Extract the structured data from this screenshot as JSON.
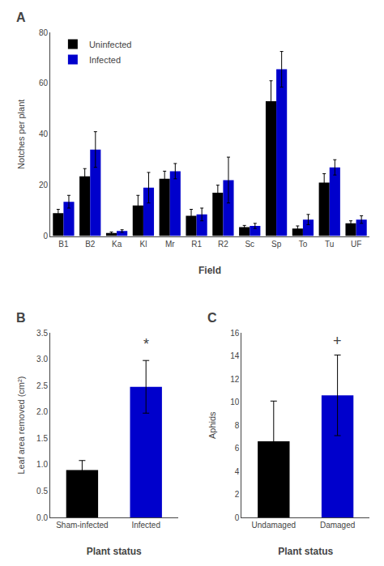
{
  "chart_data": [
    {
      "type": "bar",
      "title": "A",
      "categories": [
        "B1",
        "B2",
        "Ka",
        "Kl",
        "Mr",
        "R1",
        "R2",
        "Sc",
        "Sp",
        "To",
        "Tu",
        "UF"
      ],
      "series": [
        {
          "name": "Uninfected",
          "color": "#000000",
          "values": [
            9,
            23.5,
            1.2,
            12,
            22.5,
            8,
            17,
            3.5,
            53,
            3,
            21,
            5
          ],
          "errors": [
            1.5,
            3,
            0.4,
            4,
            3,
            2.5,
            3,
            0.7,
            8,
            1,
            3.5,
            1
          ]
        },
        {
          "name": "Infected",
          "color": "#0000cc",
          "values": [
            13.5,
            34,
            2,
            19,
            25.5,
            8.5,
            22,
            4,
            65.5,
            6.5,
            27,
            6.5
          ],
          "errors": [
            2.5,
            7,
            0.5,
            6,
            3,
            2.5,
            9,
            1,
            7,
            2,
            3,
            1.5
          ]
        }
      ],
      "xlabel": "Field",
      "ylabel": "Notches per plant",
      "ylim": [
        0,
        80
      ],
      "yticks": [
        0,
        20,
        40,
        60,
        80
      ],
      "legend": "upper left",
      "grid": false
    },
    {
      "type": "bar",
      "title": "B",
      "categories": [
        "Sham-infected",
        "Infected"
      ],
      "values": [
        0.9,
        2.48
      ],
      "errors": [
        0.18,
        0.5
      ],
      "colors": [
        "#000000",
        "#0000cc"
      ],
      "xlabel": "Plant status",
      "ylabel": "Leaf area removed (cm²)",
      "ylim": [
        0,
        3.5
      ],
      "yticks": [
        {
          "value": 0,
          "label": "0.0"
        },
        0.5,
        {
          "value": 1,
          "label": "1.0"
        },
        1.5,
        {
          "value": 2,
          "label": "2.0"
        },
        2.5,
        {
          "value": 3,
          "label": "3.0"
        },
        3.5
      ],
      "annotations": [
        {
          "text": "*",
          "x": "Infected",
          "y": 3.1
        }
      ],
      "grid": false
    },
    {
      "type": "bar",
      "title": "C",
      "categories": [
        "Undamaged",
        "Damaged"
      ],
      "values": [
        6.6,
        10.6
      ],
      "errors": [
        3.5,
        3.5
      ],
      "colors": [
        "#000000",
        "#0000cc"
      ],
      "xlabel": "Plant status",
      "ylabel": "Aphids",
      "ylim": [
        0,
        16
      ],
      "yticks": [
        0,
        2,
        4,
        6,
        8,
        10,
        12,
        14,
        16
      ],
      "annotations": [
        {
          "text": "+",
          "x": "Damaged",
          "y": 14.5
        }
      ],
      "grid": false
    }
  ]
}
